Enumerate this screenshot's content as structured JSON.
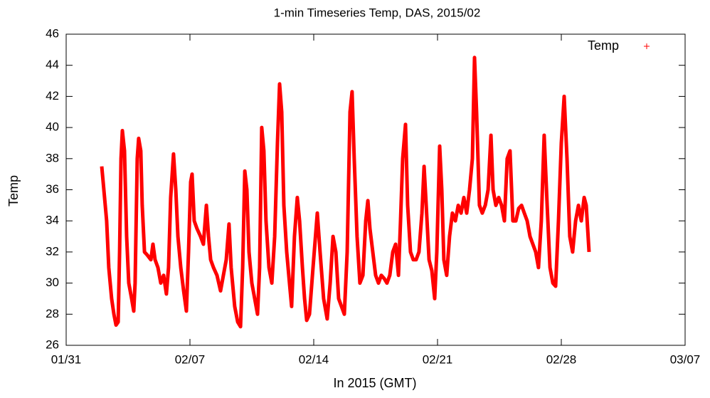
{
  "chart_data": {
    "type": "line",
    "title": "1-min Timeseries Temp, DAS, 2015/02",
    "xlabel": "In 2015 (GMT)",
    "ylabel": "Temp",
    "legend": "top-right",
    "xlim": [
      0,
      35
    ],
    "xticks": [
      {
        "value": 0,
        "label": "01/31"
      },
      {
        "value": 7,
        "label": "02/07"
      },
      {
        "value": 14,
        "label": "02/14"
      },
      {
        "value": 21,
        "label": "02/21"
      },
      {
        "value": 28,
        "label": "02/28"
      },
      {
        "value": 35,
        "label": "03/07"
      }
    ],
    "ylim": [
      26,
      46
    ],
    "yticks": [
      26,
      28,
      30,
      32,
      34,
      36,
      38,
      40,
      42,
      44,
      46
    ],
    "series": [
      {
        "name": "Temp",
        "color": "#ff0000",
        "x": [
          2.01,
          2.09,
          2.29,
          2.41,
          2.57,
          2.7,
          2.82,
          2.94,
          3.02,
          3.1,
          3.18,
          3.3,
          3.42,
          3.54,
          3.7,
          3.82,
          3.9,
          4.02,
          4.1,
          4.22,
          4.3,
          4.43,
          4.59,
          4.79,
          4.91,
          5.03,
          5.19,
          5.35,
          5.51,
          5.67,
          5.79,
          5.91,
          6.07,
          6.2,
          6.32,
          6.48,
          6.64,
          6.8,
          6.92,
          7.04,
          7.12,
          7.24,
          7.4,
          7.6,
          7.76,
          7.93,
          8.05,
          8.17,
          8.33,
          8.53,
          8.73,
          8.89,
          9.05,
          9.21,
          9.33,
          9.53,
          9.7,
          9.86,
          9.98,
          10.1,
          10.22,
          10.34,
          10.5,
          10.66,
          10.82,
          10.94,
          11.06,
          11.18,
          11.3,
          11.47,
          11.63,
          11.79,
          11.95,
          12.07,
          12.19,
          12.31,
          12.47,
          12.63,
          12.75,
          12.91,
          13.07,
          13.2,
          13.36,
          13.48,
          13.6,
          13.76,
          13.96,
          14.2,
          14.36,
          14.56,
          14.76,
          14.93,
          15.09,
          15.25,
          15.41,
          15.57,
          15.73,
          15.89,
          16.05,
          16.17,
          16.29,
          16.45,
          16.61,
          16.78,
          16.94,
          17.06,
          17.18,
          17.34,
          17.5,
          17.66,
          17.82,
          17.98,
          18.14,
          18.3,
          18.47,
          18.63,
          18.79,
          18.91,
          19.03,
          19.19,
          19.31,
          19.47,
          19.63,
          19.79,
          19.95,
          20.12,
          20.24,
          20.36,
          20.52,
          20.68,
          20.84,
          20.96,
          21.12,
          21.24,
          21.36,
          21.52,
          21.68,
          21.84,
          22.01,
          22.17,
          22.33,
          22.49,
          22.65,
          22.81,
          22.97,
          23.09,
          23.21,
          23.37,
          23.53,
          23.7,
          23.86,
          24.02,
          24.14,
          24.3,
          24.46,
          24.62,
          24.78,
          24.94,
          25.1,
          25.26,
          25.43,
          25.59,
          25.75,
          25.91,
          26.07,
          26.23,
          26.39,
          26.55,
          26.71,
          26.87,
          27.03,
          27.2,
          27.36,
          27.52,
          27.68,
          27.84,
          28.0,
          28.16,
          28.32,
          28.48,
          28.64,
          28.81,
          28.97,
          29.13,
          29.29,
          29.41,
          29.57
        ],
        "values": [
          37.5,
          36.5,
          34,
          31,
          29,
          28,
          27.3,
          27.5,
          32,
          38,
          39.8,
          38.5,
          33,
          30,
          29,
          28.2,
          30,
          38,
          39.3,
          38.5,
          35,
          32,
          31.8,
          31.5,
          32.5,
          31.5,
          31,
          30,
          30.5,
          29.3,
          31,
          35.5,
          38.3,
          36,
          33,
          31,
          29.5,
          28.2,
          32,
          36.5,
          37,
          34,
          33.5,
          33,
          32.5,
          35,
          33,
          31.5,
          31,
          30.5,
          29.5,
          30.5,
          31.5,
          33.8,
          31,
          28.5,
          27.5,
          27.2,
          31,
          37.2,
          36,
          32,
          30,
          29,
          28,
          31,
          40,
          38.5,
          34,
          31,
          30,
          33,
          39,
          42.8,
          41,
          35,
          32,
          30,
          28.5,
          33,
          35.5,
          34,
          31,
          29,
          27.6,
          28,
          31,
          34.5,
          32,
          29,
          27.7,
          30,
          33,
          32,
          29,
          28.5,
          28,
          32,
          41,
          42.3,
          38,
          33,
          30,
          30.5,
          34,
          35.3,
          33.5,
          32,
          30.5,
          30,
          30.5,
          30.3,
          30,
          30.5,
          32,
          32.5,
          30.5,
          34,
          38,
          40.2,
          35,
          32,
          31.5,
          31.5,
          32,
          34.5,
          37.5,
          35,
          31.5,
          30.8,
          29,
          32,
          38.8,
          36,
          31.5,
          30.5,
          33,
          34.5,
          34,
          35,
          34.5,
          35.5,
          34.5,
          36,
          38,
          44.5,
          41,
          35,
          34.5,
          35,
          36,
          39.5,
          36,
          35,
          35.5,
          35,
          34,
          38,
          38.5,
          34,
          34,
          34.8,
          35,
          34.5,
          34,
          33,
          32.5,
          32,
          31,
          34,
          39.5,
          35,
          31,
          30,
          29.8,
          34,
          39,
          42,
          38,
          33,
          32,
          34,
          35,
          34,
          35.5,
          35,
          32
        ]
      }
    ]
  }
}
